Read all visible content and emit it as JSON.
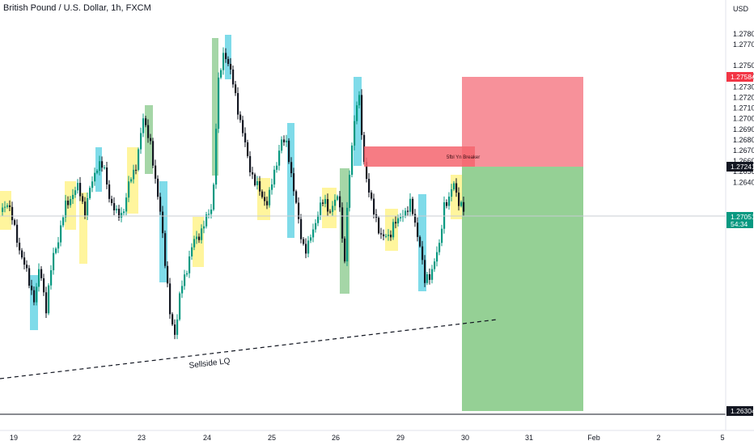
{
  "header": {
    "title": "British Pound / U.S. Dollar, 1h, FXCM"
  },
  "axis": {
    "currency_label": "USD"
  },
  "chart_data": {
    "type": "candlestick",
    "symbol": "British Pound / U.S. Dollar, 1h, FXCM",
    "y_ticks": [
      "1.27800",
      "1.27700",
      "1.27500",
      "1.27400",
      "1.27300",
      "1.27200",
      "1.27100",
      "1.27000",
      "1.26900",
      "1.26800",
      "1.26700",
      "1.26600",
      "1.26500",
      "1.26400"
    ],
    "y_tick_values": [
      1.278,
      1.277,
      1.275,
      1.274,
      1.273,
      1.272,
      1.271,
      1.27,
      1.269,
      1.268,
      1.267,
      1.266,
      1.265,
      1.264
    ],
    "x_ticks": [
      "19",
      "22",
      "23",
      "24",
      "25",
      "26",
      "29",
      "30",
      "31",
      "Feb",
      "2",
      "5"
    ],
    "price_badges": {
      "target": {
        "label": "1.27584",
        "color": "#f23645"
      },
      "entry": {
        "label": "1.27241",
        "color": "#131722"
      },
      "last": {
        "label": "1.27051",
        "countdown": "54:34",
        "color": "#089981"
      },
      "stop": {
        "label": "1.26304",
        "color": "#131722"
      }
    },
    "annotations": {
      "trendline_label": "Sellside LQ",
      "zone_label": "5fbl Yn Breaker"
    },
    "colors": {
      "up": "#089981",
      "down": "#131722",
      "highlight_yellow": "#fff59d",
      "highlight_cyan": "#7fdbe9",
      "highlight_green": "#a5d6a7",
      "profit_zone": "#8fce8f",
      "loss_zone": "#f6858f",
      "breaker_zone": "#f5656f"
    }
  }
}
